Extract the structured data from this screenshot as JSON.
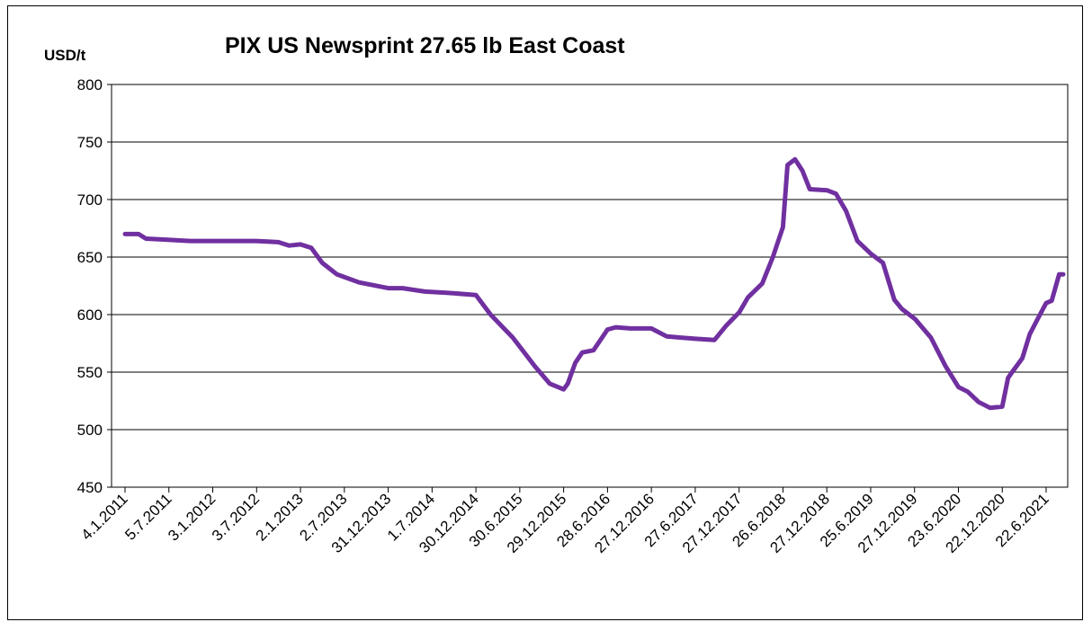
{
  "chart_data": {
    "type": "line",
    "title": "PIX US Newsprint 27.65 lb East Coast",
    "ylabel": "USD/t",
    "ylim": [
      450,
      800
    ],
    "yticks": [
      450,
      500,
      550,
      600,
      650,
      700,
      750,
      800
    ],
    "grid": "horizontal",
    "x_tick_labels": [
      "4.1.2011",
      "5.7.2011",
      "3.1.2012",
      "3.7.2012",
      "2.1.2013",
      "2.7.2013",
      "31.12.2013",
      "1.7.2014",
      "30.12.2014",
      "30.6.2015",
      "29.12.2015",
      "28.6.2016",
      "27.12.2016",
      "27.6.2017",
      "27.12.2017",
      "26.6.2018",
      "27.12.2018",
      "25.6.2019",
      "27.12.2019",
      "23.6.2020",
      "22.12.2020",
      "22.6.2021"
    ],
    "series": [
      {
        "name": "",
        "color": "#7030A0",
        "x": [
          "2011-01-04",
          "2011-02-15",
          "2011-03-01",
          "2011-04-01",
          "2011-07-01",
          "2011-10-01",
          "2012-01-03",
          "2012-07-01",
          "2012-10-01",
          "2012-11-15",
          "2013-01-01",
          "2013-02-15",
          "2013-04-01",
          "2013-06-01",
          "2013-09-01",
          "2013-12-31",
          "2014-03-01",
          "2014-06-01",
          "2014-09-01",
          "2014-12-30",
          "2015-03-01",
          "2015-06-01",
          "2015-09-01",
          "2015-11-01",
          "2015-12-29",
          "2016-01-15",
          "2016-02-15",
          "2016-03-15",
          "2016-05-01",
          "2016-06-28",
          "2016-08-01",
          "2016-10-01",
          "2016-12-27",
          "2017-03-01",
          "2017-06-27",
          "2017-09-15",
          "2017-11-01",
          "2017-12-27",
          "2018-02-01",
          "2018-04-01",
          "2018-05-15",
          "2018-06-26",
          "2018-07-15",
          "2018-08-15",
          "2018-09-15",
          "2018-10-15",
          "2018-12-27",
          "2019-02-01",
          "2019-03-15",
          "2019-05-01",
          "2019-06-25",
          "2019-08-15",
          "2019-10-01",
          "2019-11-01",
          "2019-12-27",
          "2020-03-01",
          "2020-05-01",
          "2020-06-23",
          "2020-08-01",
          "2020-09-15",
          "2020-11-01",
          "2020-12-22",
          "2021-01-15",
          "2021-02-01",
          "2021-03-15",
          "2021-04-15",
          "2021-05-15",
          "2021-06-22",
          "2021-07-15",
          "2021-08-15",
          "2021-09-01"
        ],
        "values": [
          670,
          670,
          670,
          666,
          665,
          664,
          664,
          664,
          663,
          660,
          661,
          658,
          645,
          635,
          628,
          623,
          623,
          620,
          619,
          617,
          600,
          580,
          555,
          540,
          535,
          540,
          558,
          567,
          569,
          587,
          589,
          588,
          588,
          581,
          579,
          578,
          590,
          602,
          615,
          627,
          650,
          676,
          730,
          735,
          725,
          709,
          708,
          705,
          690,
          664,
          653,
          645,
          613,
          605,
          596,
          580,
          555,
          537,
          533,
          524,
          519,
          520,
          545,
          550,
          562,
          583,
          595,
          610,
          612,
          635,
          635
        ]
      }
    ]
  }
}
